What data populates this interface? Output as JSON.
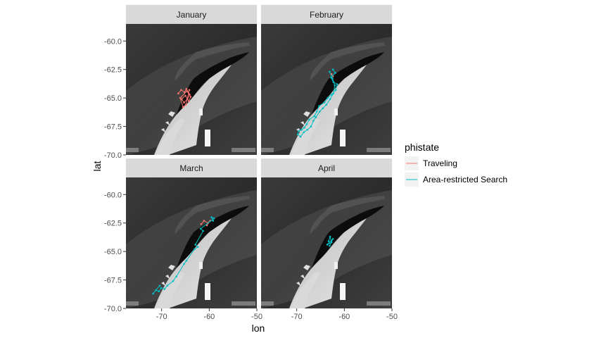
{
  "chart_data": {
    "type": "scatter",
    "facet_variable": "month",
    "facets": [
      "January",
      "February",
      "March",
      "April"
    ],
    "xlabel": "lon",
    "ylabel": "lat",
    "xlim": [
      -77.5,
      -50
    ],
    "ylim": [
      -70,
      -58.5
    ],
    "x_ticks": [
      -70,
      -60,
      -50
    ],
    "x_tick_labels": [
      "-70",
      "-60",
      "-50"
    ],
    "y_ticks": [
      -60,
      -62.5,
      -65,
      -67.5,
      -70
    ],
    "y_tick_labels": [
      "-60.0",
      "-62.5",
      "-65.0",
      "-67.5",
      "-70.0"
    ],
    "background": "satellite map (greyscale) of the Antarctic Peninsula",
    "legend": {
      "title": "phistate",
      "placement": "right",
      "entries": [
        {
          "label": "Traveling",
          "color": "#F8766D"
        },
        {
          "label": "Area-restricted Search",
          "color": "#00BFC4"
        }
      ]
    },
    "series": [
      {
        "name": "Traveling",
        "color": "#F8766D",
        "tracks": [
          {
            "facet": "January",
            "points": [
              [
                -66.5,
                -64.6
              ],
              [
                -65.9,
                -64.3
              ],
              [
                -65.2,
                -64.5
              ],
              [
                -64.8,
                -64.2
              ],
              [
                -64.1,
                -64.7
              ],
              [
                -64.6,
                -65.1
              ],
              [
                -65.3,
                -65.4
              ],
              [
                -65.8,
                -65.1
              ],
              [
                -65.0,
                -64.8
              ],
              [
                -64.3,
                -65.3
              ],
              [
                -63.9,
                -64.9
              ],
              [
                -64.7,
                -64.4
              ],
              [
                -66.1,
                -65.0
              ],
              [
                -65.5,
                -65.8
              ],
              [
                -64.9,
                -65.6
              ],
              [
                -64.2,
                -64.3
              ]
            ]
          },
          {
            "facet": "February",
            "points": [
              [
                -62.7,
                -62.9
              ],
              [
                -62.4,
                -63.1
              ]
            ]
          },
          {
            "facet": "March",
            "points": [
              [
                -61.7,
                -62.6
              ],
              [
                -61.1,
                -62.3
              ],
              [
                -60.3,
                -62.5
              ],
              [
                -59.8,
                -62.3
              ],
              [
                -60.5,
                -62.7
              ]
            ]
          }
        ]
      },
      {
        "name": "Area-restricted Search",
        "color": "#00BFC4",
        "tracks": [
          {
            "facet": "February",
            "points": [
              [
                -62.4,
                -62.5
              ],
              [
                -61.9,
                -62.8
              ],
              [
                -62.8,
                -63.2
              ],
              [
                -62.3,
                -63.6
              ],
              [
                -61.5,
                -63.8
              ],
              [
                -61.8,
                -64.3
              ],
              [
                -62.7,
                -64.7
              ],
              [
                -63.5,
                -65.0
              ],
              [
                -64.2,
                -65.4
              ],
              [
                -65.3,
                -65.7
              ],
              [
                -65.8,
                -66.2
              ],
              [
                -66.3,
                -66.6
              ],
              [
                -67.4,
                -66.9
              ],
              [
                -67.9,
                -67.3
              ],
              [
                -68.4,
                -67.6
              ],
              [
                -69.0,
                -67.8
              ],
              [
                -69.6,
                -67.9
              ],
              [
                -69.8,
                -68.2
              ],
              [
                -69.2,
                -68.4
              ],
              [
                -68.5,
                -68.0
              ],
              [
                -67.8,
                -67.8
              ],
              [
                -67.0,
                -67.5
              ],
              [
                -66.5,
                -67.0
              ],
              [
                -66.0,
                -66.7
              ],
              [
                -65.2,
                -66.2
              ],
              [
                -64.5,
                -65.9
              ],
              [
                -63.8,
                -65.6
              ],
              [
                -63.0,
                -65.1
              ],
              [
                -62.3,
                -64.6
              ],
              [
                -62.0,
                -63.9
              ],
              [
                -62.5,
                -63.3
              ],
              [
                -63.1,
                -62.7
              ]
            ]
          },
          {
            "facet": "March",
            "points": [
              [
                -59.2,
                -62.3
              ],
              [
                -59.5,
                -62.0
              ],
              [
                -59.0,
                -62.1
              ],
              [
                -61.8,
                -63.0
              ],
              [
                -61.3,
                -63.2
              ],
              [
                -62.9,
                -64.4
              ],
              [
                -62.4,
                -64.6
              ],
              [
                -63.1,
                -64.8
              ],
              [
                -64.8,
                -65.8
              ],
              [
                -65.3,
                -66.1
              ],
              [
                -66.9,
                -67.2
              ],
              [
                -67.6,
                -67.6
              ],
              [
                -68.8,
                -68.0
              ],
              [
                -69.4,
                -68.3
              ],
              [
                -70.1,
                -68.2
              ],
              [
                -70.6,
                -68.5
              ],
              [
                -71.2,
                -68.4
              ],
              [
                -71.8,
                -68.7
              ],
              [
                -70.4,
                -68.0
              ]
            ]
          },
          {
            "facet": "April",
            "points": [
              [
                -63.3,
                -64.1
              ],
              [
                -63.0,
                -63.7
              ],
              [
                -62.7,
                -64.2
              ],
              [
                -63.6,
                -64.4
              ],
              [
                -62.4,
                -63.9
              ],
              [
                -63.1,
                -64.5
              ]
            ]
          }
        ]
      }
    ]
  }
}
